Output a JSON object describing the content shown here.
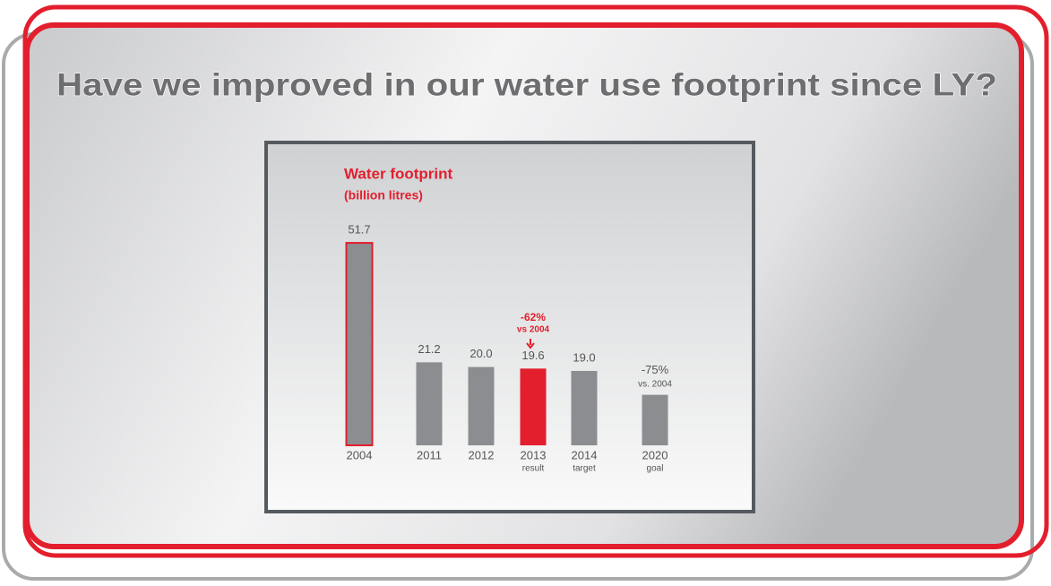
{
  "slide_title": "Have we improved in our water use footprint since LY?",
  "chart_data": {
    "type": "bar",
    "title": "Water footprint",
    "subtitle": "(billion litres)",
    "categories": [
      "2004",
      "2011",
      "2012",
      "2013",
      "2014",
      "2020"
    ],
    "category_notes": [
      null,
      null,
      null,
      "result",
      "target",
      "goal"
    ],
    "values": [
      51.7,
      21.2,
      20.0,
      19.6,
      19.0,
      12.9
    ],
    "value_labels": [
      "51.7",
      "21.2",
      "20.0",
      "19.6",
      "19.0",
      null
    ],
    "change_labels": [
      null,
      null,
      null,
      "-62%",
      null,
      "-75%"
    ],
    "change_notes": [
      null,
      null,
      null,
      "vs 2004",
      null,
      "vs. 2004"
    ],
    "colors": [
      "#8b8d90",
      "#8b8d90",
      "#8b8d90",
      "#e31e2d",
      "#8b8d90",
      "#8b8d90"
    ],
    "edge_colors": [
      "#e31e2d",
      null,
      null,
      null,
      null,
      null
    ]
  }
}
